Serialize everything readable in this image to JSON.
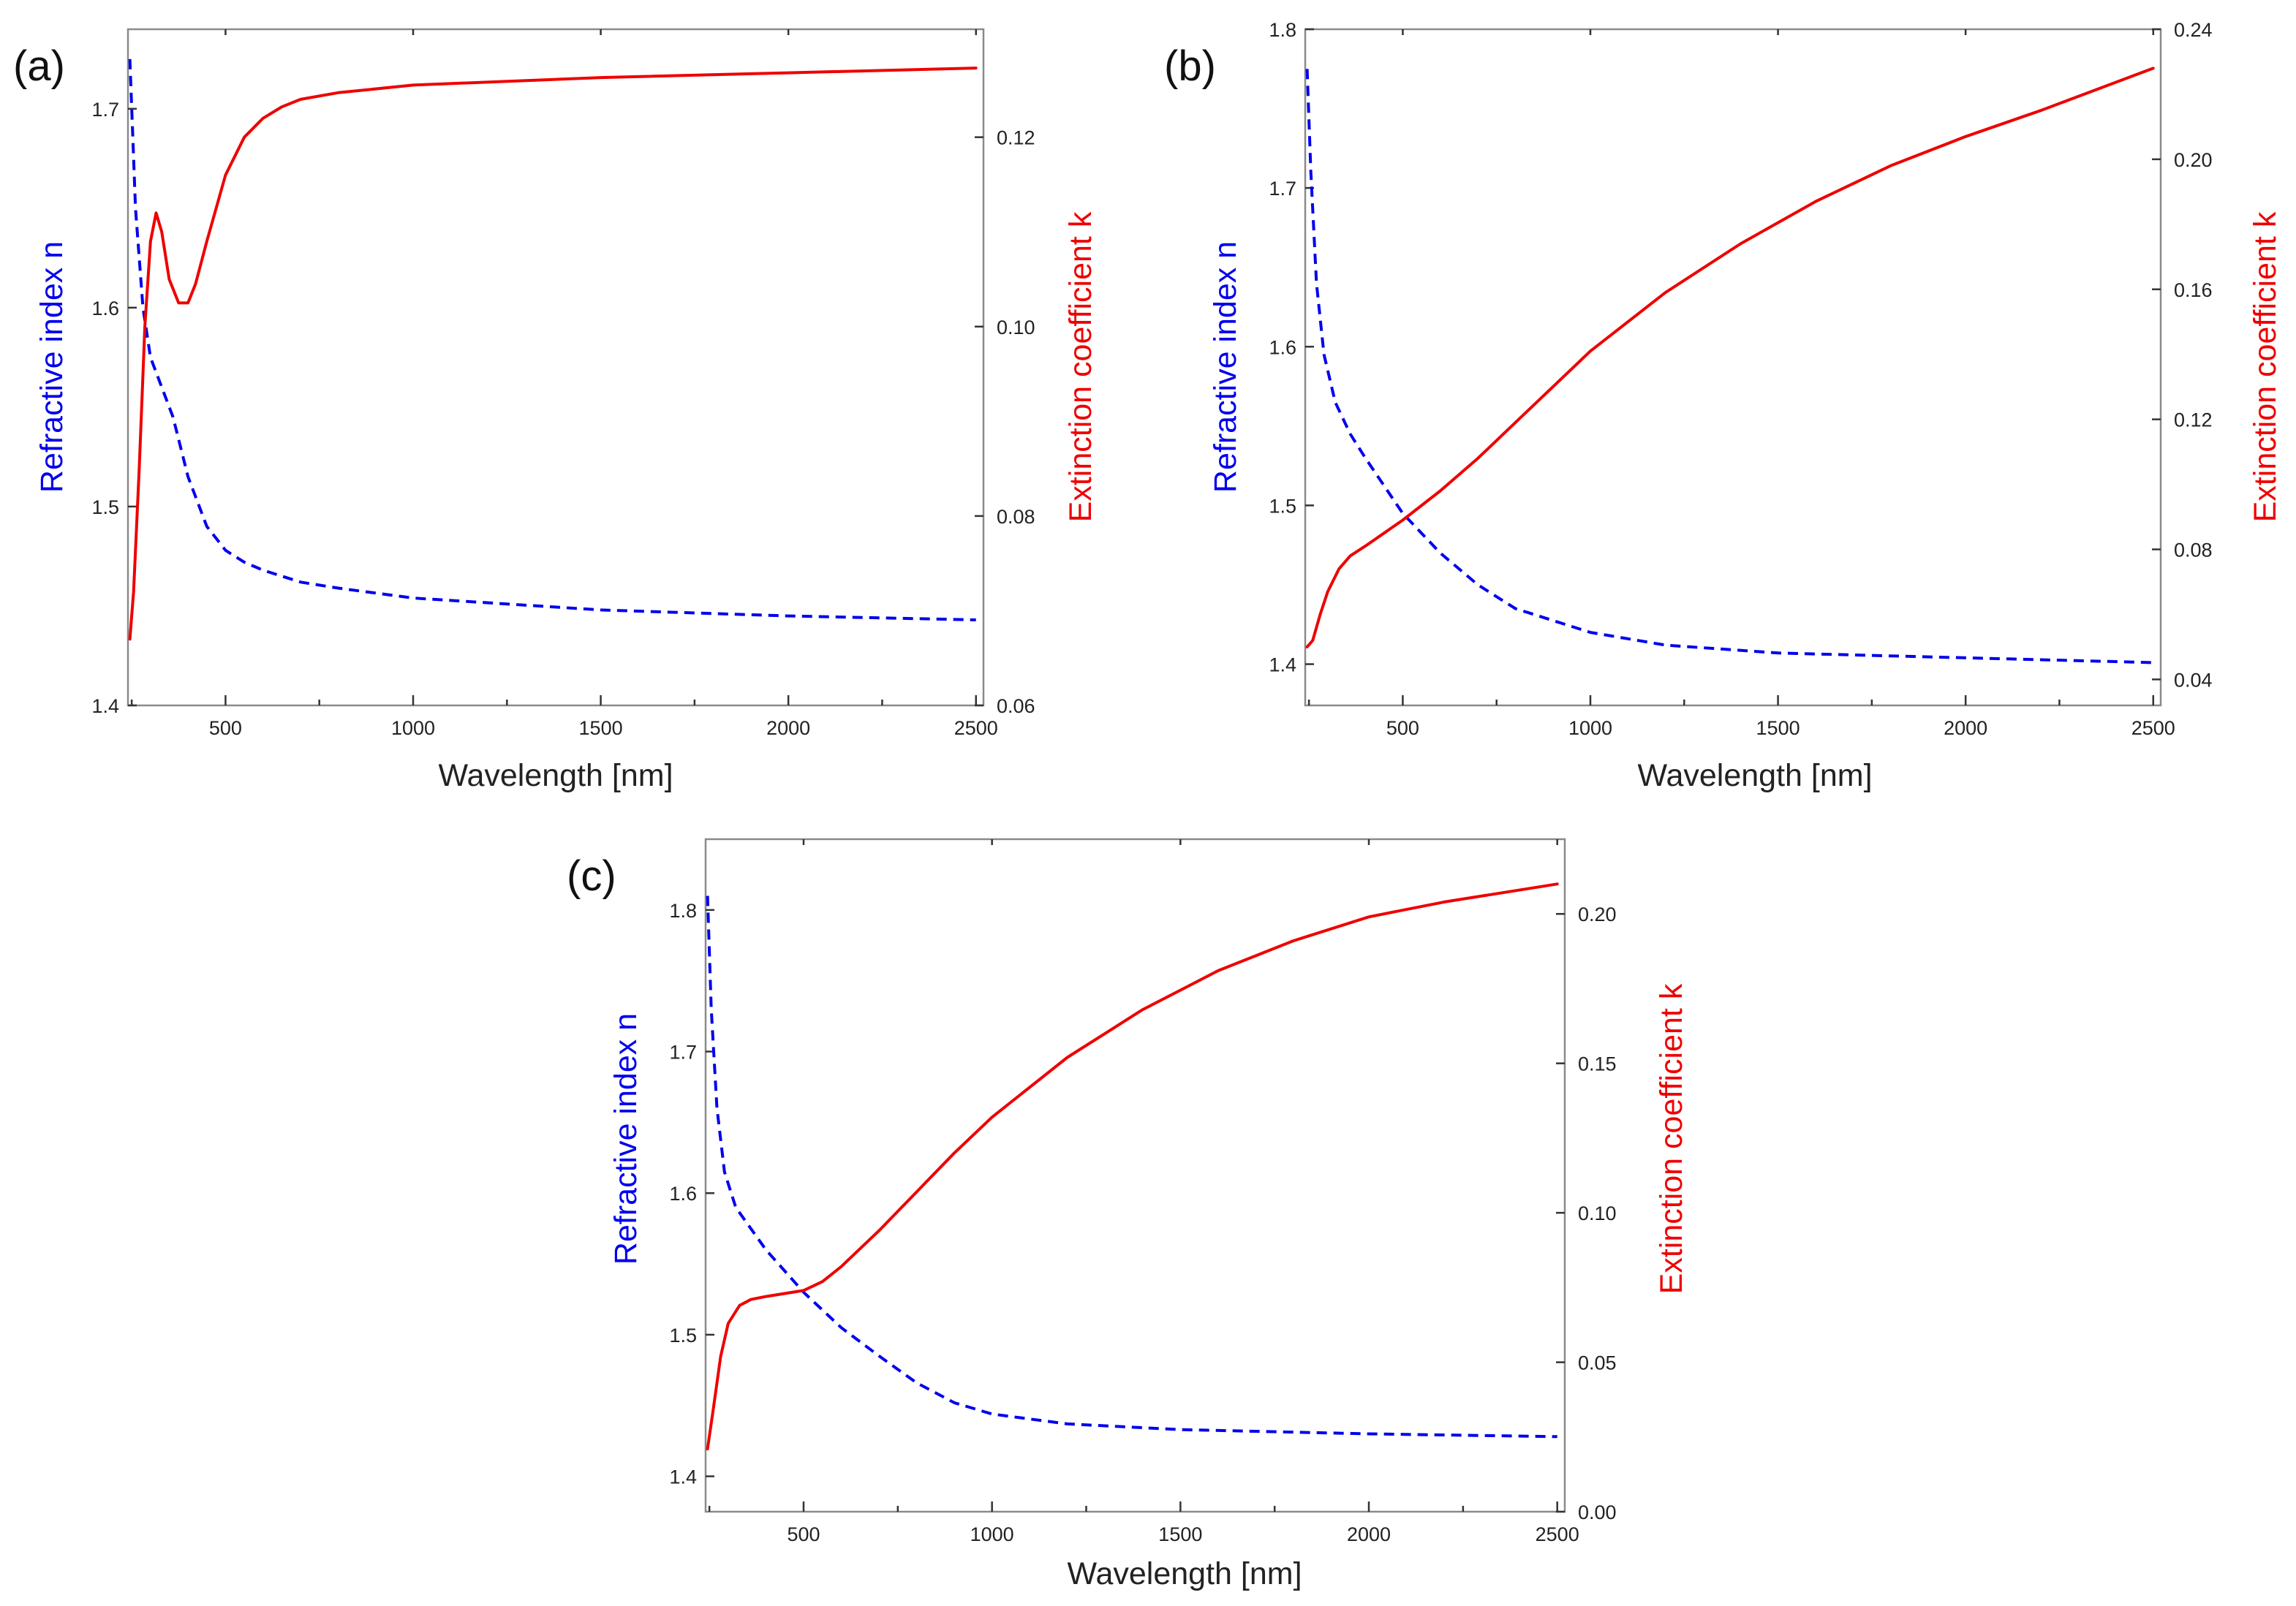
{
  "colors": {
    "n_series": "#0000ee",
    "k_series": "#ee0000",
    "frame": "#8a8a8a",
    "text": "#222222"
  },
  "chart_data": [
    {
      "type": "line",
      "panel_label": "(a)",
      "xlabel": "Wavelength [nm]",
      "ylabel_left": "Refractive index n",
      "ylabel_right": "Extinction coefficient k",
      "xlim": [
        240,
        2520
      ],
      "ylim_left": [
        1.4,
        1.74
      ],
      "ylim_right": [
        0.06,
        0.1314
      ],
      "xticks": [
        500,
        1000,
        1500,
        2000,
        2500
      ],
      "yticks_left": [
        1.4,
        1.5,
        1.6,
        1.7
      ],
      "yticks_right": [
        0.06,
        0.08,
        0.1,
        0.12
      ],
      "yticks_right_labels": [
        "0.06",
        "0.08",
        "0.10",
        "0.12"
      ],
      "series": [
        {
          "name": "Refractive index n",
          "axis": "left",
          "style": "dashed",
          "x": [
            245,
            260,
            280,
            300,
            330,
            360,
            400,
            450,
            500,
            550,
            600,
            700,
            800,
            1000,
            1500,
            2000,
            2500
          ],
          "y": [
            1.725,
            1.65,
            1.6,
            1.575,
            1.56,
            1.545,
            1.515,
            1.49,
            1.478,
            1.472,
            1.468,
            1.462,
            1.459,
            1.454,
            1.448,
            1.445,
            1.443
          ]
        },
        {
          "name": "Extinction coefficient k",
          "axis": "right",
          "style": "solid",
          "x": [
            245,
            255,
            270,
            285,
            300,
            315,
            330,
            350,
            375,
            400,
            420,
            450,
            500,
            550,
            600,
            650,
            700,
            800,
            1000,
            1500,
            2000,
            2500
          ],
          "y": [
            0.067,
            0.072,
            0.085,
            0.1,
            0.109,
            0.112,
            0.11,
            0.105,
            0.1025,
            0.1025,
            0.1045,
            0.109,
            0.116,
            0.12,
            0.122,
            0.1232,
            0.124,
            0.1247,
            0.1255,
            0.1263,
            0.1268,
            0.1273
          ]
        }
      ]
    },
    {
      "type": "line",
      "panel_label": "(b)",
      "xlabel": "Wavelength [nm]",
      "ylabel_left": "Refractive index n",
      "ylabel_right": "Extinction coefficient k",
      "xlim": [
        240,
        2520
      ],
      "ylim_left": [
        1.374,
        1.8
      ],
      "ylim_right": [
        0.032,
        0.24
      ],
      "xticks": [
        500,
        1000,
        1500,
        2000,
        2500
      ],
      "yticks_left": [
        1.4,
        1.5,
        1.6,
        1.7,
        1.8
      ],
      "yticks_right": [
        0.04,
        0.08,
        0.12,
        0.16,
        0.2,
        0.24
      ],
      "yticks_right_labels": [
        "0.04",
        "0.08",
        "0.12",
        "0.16",
        "0.20",
        "0.24"
      ],
      "series": [
        {
          "name": "Refractive index n",
          "axis": "left",
          "style": "dashed",
          "x": [
            245,
            255,
            270,
            290,
            320,
            360,
            400,
            500,
            600,
            700,
            800,
            1000,
            1200,
            1500,
            2000,
            2500
          ],
          "y": [
            1.775,
            1.71,
            1.64,
            1.595,
            1.565,
            1.545,
            1.53,
            1.495,
            1.47,
            1.45,
            1.435,
            1.42,
            1.412,
            1.407,
            1.404,
            1.401
          ]
        },
        {
          "name": "Extinction coefficient k",
          "axis": "right",
          "style": "solid",
          "x": [
            245,
            260,
            280,
            300,
            330,
            360,
            400,
            450,
            500,
            600,
            700,
            800,
            900,
            1000,
            1200,
            1400,
            1600,
            1800,
            2000,
            2200,
            2500
          ],
          "y": [
            0.05,
            0.052,
            0.06,
            0.067,
            0.074,
            0.078,
            0.081,
            0.085,
            0.089,
            0.098,
            0.108,
            0.119,
            0.13,
            0.141,
            0.159,
            0.174,
            0.187,
            0.198,
            0.207,
            0.215,
            0.228
          ]
        }
      ]
    },
    {
      "type": "line",
      "panel_label": "(c)",
      "xlabel": "Wavelength [nm]",
      "ylabel_left": "Refractive index n",
      "ylabel_right": "Extinction coefficient k",
      "xlim": [
        240,
        2520
      ],
      "ylim_left": [
        1.375,
        1.85
      ],
      "ylim_right": [
        0.0,
        0.225
      ],
      "xticks": [
        500,
        1000,
        1500,
        2000,
        2500
      ],
      "yticks_left": [
        1.4,
        1.5,
        1.6,
        1.7,
        1.8
      ],
      "yticks_right": [
        0.0,
        0.05,
        0.1,
        0.15,
        0.2
      ],
      "yticks_right_labels": [
        "0.00",
        "0.05",
        "0.10",
        "0.15",
        "0.20"
      ],
      "series": [
        {
          "name": "Refractive index n",
          "axis": "left",
          "style": "dashed",
          "x": [
            245,
            255,
            270,
            290,
            320,
            360,
            400,
            500,
            600,
            700,
            800,
            900,
            1000,
            1200,
            1500,
            2000,
            2500
          ],
          "y": [
            1.81,
            1.73,
            1.66,
            1.615,
            1.59,
            1.575,
            1.56,
            1.53,
            1.505,
            1.485,
            1.466,
            1.452,
            1.444,
            1.437,
            1.433,
            1.43,
            1.428
          ]
        },
        {
          "name": "Extinction coefficient k",
          "axis": "right",
          "style": "solid",
          "x": [
            245,
            260,
            280,
            300,
            330,
            360,
            400,
            450,
            500,
            550,
            600,
            700,
            800,
            900,
            1000,
            1200,
            1400,
            1600,
            1800,
            2000,
            2200,
            2500
          ],
          "y": [
            0.021,
            0.034,
            0.052,
            0.063,
            0.069,
            0.071,
            0.072,
            0.073,
            0.074,
            0.077,
            0.082,
            0.094,
            0.107,
            0.12,
            0.132,
            0.152,
            0.168,
            0.181,
            0.191,
            0.199,
            0.204,
            0.21
          ]
        }
      ]
    }
  ]
}
